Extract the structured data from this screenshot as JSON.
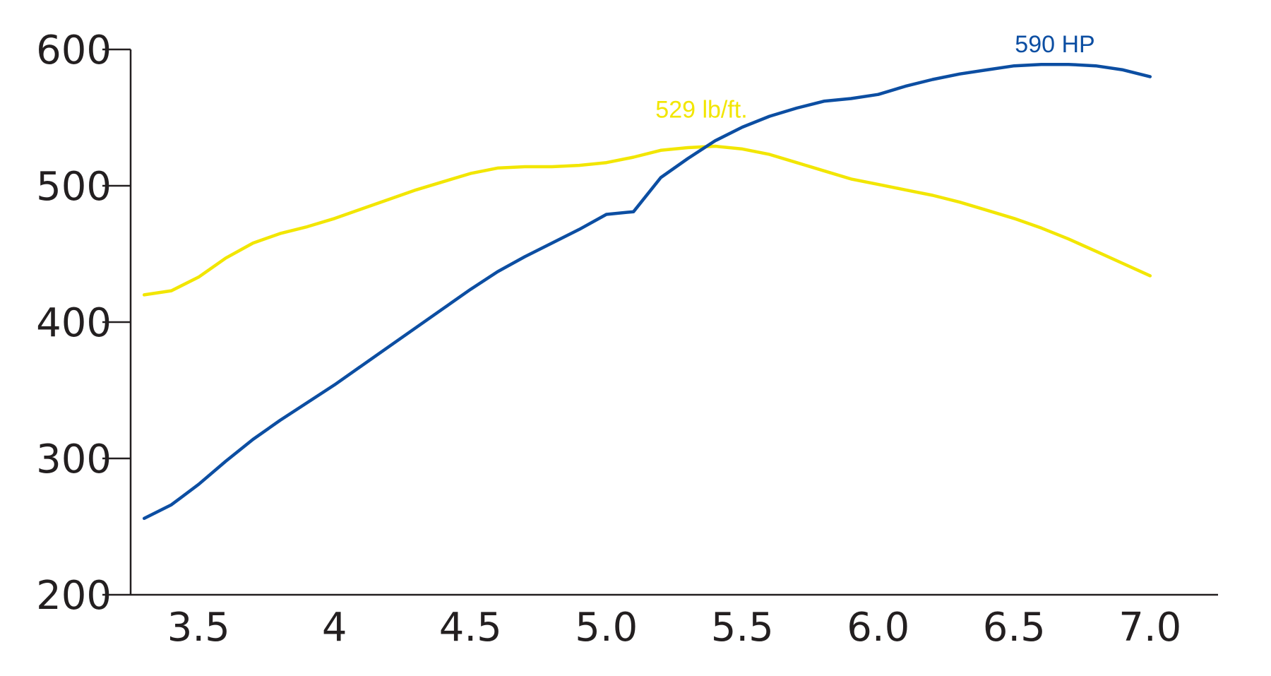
{
  "chart_data": {
    "type": "line",
    "title": "",
    "xlabel": "",
    "ylabel": "",
    "xlim": [
      3.25,
      7.25
    ],
    "ylim": [
      200,
      600
    ],
    "grid": false,
    "legend": "none",
    "x_ticks": [
      {
        "value": 3.5,
        "label": "3.5"
      },
      {
        "value": 4.0,
        "label": "4"
      },
      {
        "value": 4.5,
        "label": "4.5"
      },
      {
        "value": 5.0,
        "label": "5.0"
      },
      {
        "value": 5.5,
        "label": "5.5"
      },
      {
        "value": 6.0,
        "label": "6.0"
      },
      {
        "value": 6.5,
        "label": "6.5"
      },
      {
        "value": 7.0,
        "label": "7.0"
      }
    ],
    "y_ticks": [
      {
        "value": 600,
        "label": "600"
      },
      {
        "value": 500,
        "label": "500"
      },
      {
        "value": 400,
        "label": "400"
      },
      {
        "value": 300,
        "label": "300"
      },
      {
        "value": 200,
        "label": "200"
      }
    ],
    "series": [
      {
        "color": "#f2e600",
        "x": [
          3.3,
          3.4,
          3.5,
          3.6,
          3.7,
          3.8,
          3.9,
          4.0,
          4.1,
          4.2,
          4.3,
          4.4,
          4.5,
          4.6,
          4.7,
          4.8,
          4.9,
          5.0,
          5.1,
          5.2,
          5.3,
          5.4,
          5.5,
          5.6,
          5.7,
          5.8,
          5.9,
          6.0,
          6.1,
          6.2,
          6.3,
          6.4,
          6.5,
          6.6,
          6.7,
          6.8,
          6.9,
          7.0
        ],
        "y": [
          420,
          423,
          433,
          447,
          458,
          465,
          470,
          476,
          483,
          490,
          497,
          503,
          509,
          513,
          514,
          514,
          515,
          517,
          521,
          526,
          528,
          529,
          527,
          523,
          517,
          511,
          505,
          501,
          497,
          493,
          488,
          482,
          476,
          469,
          461,
          452,
          443,
          434
        ]
      },
      {
        "color": "#0c4ea2",
        "x": [
          3.3,
          3.4,
          3.5,
          3.6,
          3.7,
          3.8,
          3.9,
          4.0,
          4.1,
          4.2,
          4.3,
          4.4,
          4.5,
          4.6,
          4.7,
          4.8,
          4.9,
          5.0,
          5.1,
          5.2,
          5.3,
          5.4,
          5.5,
          5.6,
          5.7,
          5.8,
          5.9,
          6.0,
          6.1,
          6.2,
          6.3,
          6.4,
          6.5,
          6.6,
          6.7,
          6.8,
          6.9,
          7.0
        ],
        "y": [
          256,
          266,
          281,
          298,
          314,
          328,
          341,
          354,
          368,
          382,
          396,
          410,
          424,
          437,
          448,
          458,
          468,
          479,
          481,
          506,
          520,
          533,
          543,
          551,
          557,
          562,
          564,
          567,
          573,
          578,
          582,
          585,
          588,
          589,
          589,
          588,
          585,
          580
        ]
      }
    ],
    "annotations": [
      {
        "text": "529 lb/ft.",
        "x": 5.35,
        "y": 550,
        "color": "#f2e600"
      },
      {
        "text": "590 HP",
        "x": 6.65,
        "y": 598,
        "color": "#0c4ea2"
      }
    ]
  }
}
